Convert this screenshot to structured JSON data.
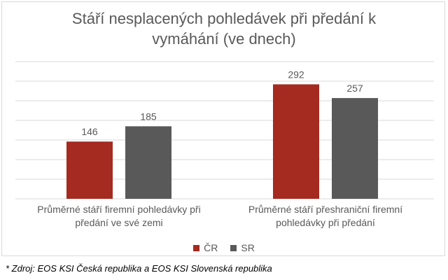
{
  "chart_data": {
    "type": "bar",
    "title_lines": [
      "Stáří nesplacených pohledávek při předání k",
      "vymáhání (ve dnech)"
    ],
    "categories": [
      [
        "Průměrné stáří firemní pohledávky při",
        "předání ve své zemi"
      ],
      [
        "Průměrné stáří přeshraniční firemní",
        "pohledávky při předání"
      ]
    ],
    "series": [
      {
        "name": "ČR",
        "values": [
          146,
          292
        ],
        "color": "#a52a1f"
      },
      {
        "name": "SR",
        "values": [
          185,
          257
        ],
        "color": "#595959"
      }
    ],
    "ylim": [
      0,
      350
    ],
    "gridlines": true,
    "legend_position": "bottom"
  },
  "footnote": "* Zdroj: EOS KSI Česká republika a EOS KSI Slovenská republika",
  "colors": {
    "grid": "#d9d9d9",
    "label": "#595959"
  }
}
